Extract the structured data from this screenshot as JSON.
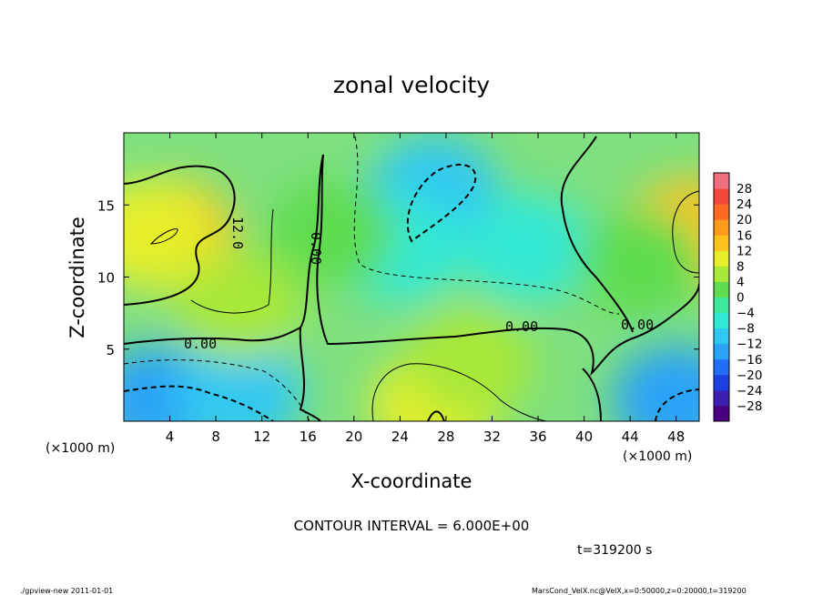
{
  "chart_data": {
    "type": "heatmap",
    "title": "zonal velocity",
    "xlabel": "X-coordinate",
    "ylabel": "Z-coordinate",
    "x_unit_note": "(×1000 m)",
    "xlim": [
      0,
      50
    ],
    "ylim": [
      0,
      20
    ],
    "x_ticks": [
      "4",
      "8",
      "12",
      "16",
      "20",
      "24",
      "28",
      "32",
      "36",
      "40",
      "44",
      "48"
    ],
    "x_tick_values": [
      4,
      8,
      12,
      16,
      20,
      24,
      28,
      32,
      36,
      40,
      44,
      48
    ],
    "y_ticks": [
      "5",
      "10",
      "15"
    ],
    "y_tick_values": [
      5,
      10,
      15
    ],
    "colorbar_levels": [
      -28,
      -24,
      -20,
      -16,
      -12,
      -8,
      -4,
      0,
      4,
      8,
      12,
      16,
      20,
      24,
      28
    ],
    "colorbar_labels": [
      "28",
      "24",
      "20",
      "16",
      "12",
      "8",
      "4",
      "0",
      "−4",
      "−8",
      "−12",
      "−16",
      "−20",
      "−24",
      "−28"
    ],
    "contour_labels": [
      "12.0",
      "0.00",
      "0.00",
      "0.00",
      "0.00"
    ],
    "contour_interval_text": "CONTOUR INTERVAL = 6.000E+00",
    "time_text": "t=319200 s",
    "footer_left": "./gpview-new   2011-01-01",
    "footer_right": "MarsCond_VelX.nc@VelX,x=0:50000,z=0:20000,t=319200",
    "regions": [
      {
        "x": 4,
        "z": 13,
        "value": 16
      },
      {
        "x": 2,
        "z": 13,
        "value": 12
      },
      {
        "x": 27,
        "z": 16,
        "value": -10
      },
      {
        "x": 24,
        "z": 12,
        "value": -6
      },
      {
        "x": 3,
        "z": 1.5,
        "value": -12
      },
      {
        "x": 10,
        "z": 2,
        "value": -8
      },
      {
        "x": 48,
        "z": 1.5,
        "value": -12
      },
      {
        "x": 49,
        "z": 13,
        "value": 14
      },
      {
        "x": 27,
        "z": 1,
        "value": 10
      },
      {
        "x": 30,
        "z": 4,
        "value": 6
      },
      {
        "x": 35,
        "z": 12,
        "value": -4
      },
      {
        "x": 18,
        "z": 13,
        "value": 2
      },
      {
        "x": 45,
        "z": 11,
        "value": 4
      },
      {
        "x": 10,
        "z": 8,
        "value": 6
      }
    ]
  }
}
